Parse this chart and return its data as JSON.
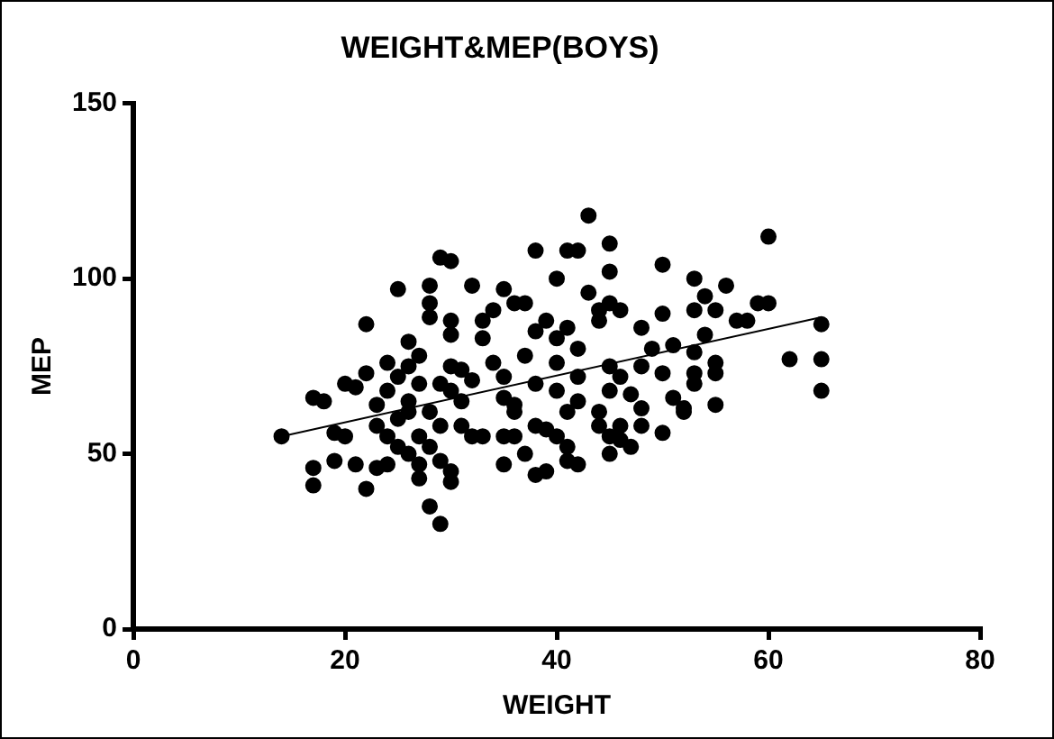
{
  "chart_data": {
    "type": "scatter",
    "title": "WEIGHT&MEP(BOYS)",
    "xlabel": "WEIGHT",
    "ylabel": "MEP",
    "xlim": [
      0,
      80
    ],
    "xticks": [
      0,
      20,
      40,
      60,
      80
    ],
    "ylim": [
      0,
      150
    ],
    "yticks": [
      0,
      50,
      100,
      150
    ],
    "grid": false,
    "legend": false,
    "marker": "circle",
    "series": [
      {
        "color": "#000000",
        "x": [
          14,
          17,
          18,
          17,
          17,
          19,
          20,
          21,
          22,
          20,
          19,
          21,
          23,
          22,
          24,
          22,
          23,
          23,
          24,
          25,
          24,
          25,
          26,
          26,
          27,
          27,
          26,
          25,
          28,
          28,
          28,
          29,
          30,
          30,
          30,
          27,
          28,
          29,
          29,
          30,
          30,
          30,
          30,
          29,
          31,
          31,
          32,
          32,
          33,
          34,
          35,
          36,
          37,
          35,
          35,
          35,
          36,
          37,
          35,
          38,
          39,
          38,
          38,
          39,
          37,
          38,
          36,
          36,
          38,
          39,
          40,
          40,
          40,
          41,
          42,
          42,
          42,
          41,
          40,
          41,
          41,
          42,
          40,
          41,
          42,
          43,
          44,
          44,
          43,
          45,
          45,
          45,
          46,
          45,
          45,
          46,
          44,
          44,
          45,
          45,
          46,
          47,
          46,
          47,
          48,
          48,
          48,
          48,
          49,
          50,
          50,
          50,
          50,
          51,
          51,
          52,
          53,
          53,
          53,
          53,
          54,
          54,
          55,
          55,
          55,
          56,
          57,
          58,
          59,
          60,
          60,
          62,
          65,
          65,
          65,
          52,
          53,
          55,
          34,
          33,
          26,
          27,
          28,
          25,
          24,
          31,
          32,
          33,
          29,
          26,
          27,
          28
        ],
        "values": [
          55,
          66,
          65,
          46,
          41,
          56,
          55,
          69,
          73,
          70,
          48,
          47,
          46,
          40,
          47,
          87,
          58,
          64,
          68,
          72,
          55,
          52,
          62,
          65,
          70,
          78,
          82,
          97,
          98,
          93,
          89,
          106,
          105,
          88,
          84,
          43,
          35,
          48,
          58,
          75,
          68,
          45,
          42,
          30,
          58,
          65,
          71,
          98,
          88,
          91,
          97,
          93,
          93,
          72,
          66,
          55,
          55,
          50,
          47,
          44,
          45,
          108,
          85,
          88,
          78,
          70,
          64,
          62,
          58,
          57,
          68,
          76,
          83,
          86,
          80,
          72,
          65,
          62,
          55,
          52,
          48,
          47,
          100,
          108,
          108,
          96,
          91,
          88,
          118,
          102,
          110,
          93,
          91,
          75,
          68,
          72,
          62,
          58,
          55,
          50,
          58,
          52,
          54,
          67,
          63,
          58,
          75,
          86,
          80,
          104,
          90,
          73,
          56,
          66,
          81,
          62,
          100,
          91,
          79,
          73,
          95,
          84,
          91,
          76,
          73,
          98,
          88,
          88,
          93,
          93,
          112,
          77,
          87,
          77,
          68,
          63,
          70,
          64,
          76,
          83,
          75,
          55,
          62,
          60,
          76,
          74,
          55,
          55,
          70,
          50,
          47,
          52
        ]
      },
      {
        "type": "line",
        "color": "#000000",
        "x": [
          14,
          65
        ],
        "values": [
          55,
          89
        ],
        "marker": "none"
      }
    ]
  }
}
